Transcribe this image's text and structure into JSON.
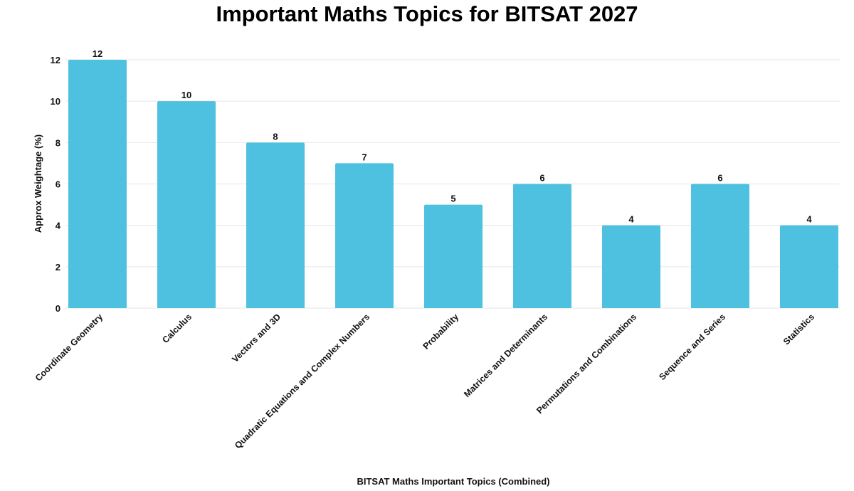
{
  "chart_data": {
    "type": "bar",
    "title": "Important Maths Topics for BITSAT 2027",
    "xlabel": "BITSAT Maths Important Topics (Combined)",
    "ylabel": "Approx Weightage (%)",
    "categories": [
      "Coordinate Geometry",
      "Calculus",
      "Vectors and 3D",
      "Quadratic Equations and Complex Numbers",
      "Probability",
      "Matrices and Determinants",
      "Permutations and Combinations",
      "Sequence and Series",
      "Statistics"
    ],
    "values": [
      12,
      10,
      8,
      7,
      5,
      6,
      4,
      6,
      4
    ],
    "ylim": [
      0,
      12
    ],
    "yticks": [
      0,
      2,
      4,
      6,
      8,
      10,
      12
    ],
    "grid": true,
    "legend": "none",
    "bar_color": "#4fc1e0"
  }
}
